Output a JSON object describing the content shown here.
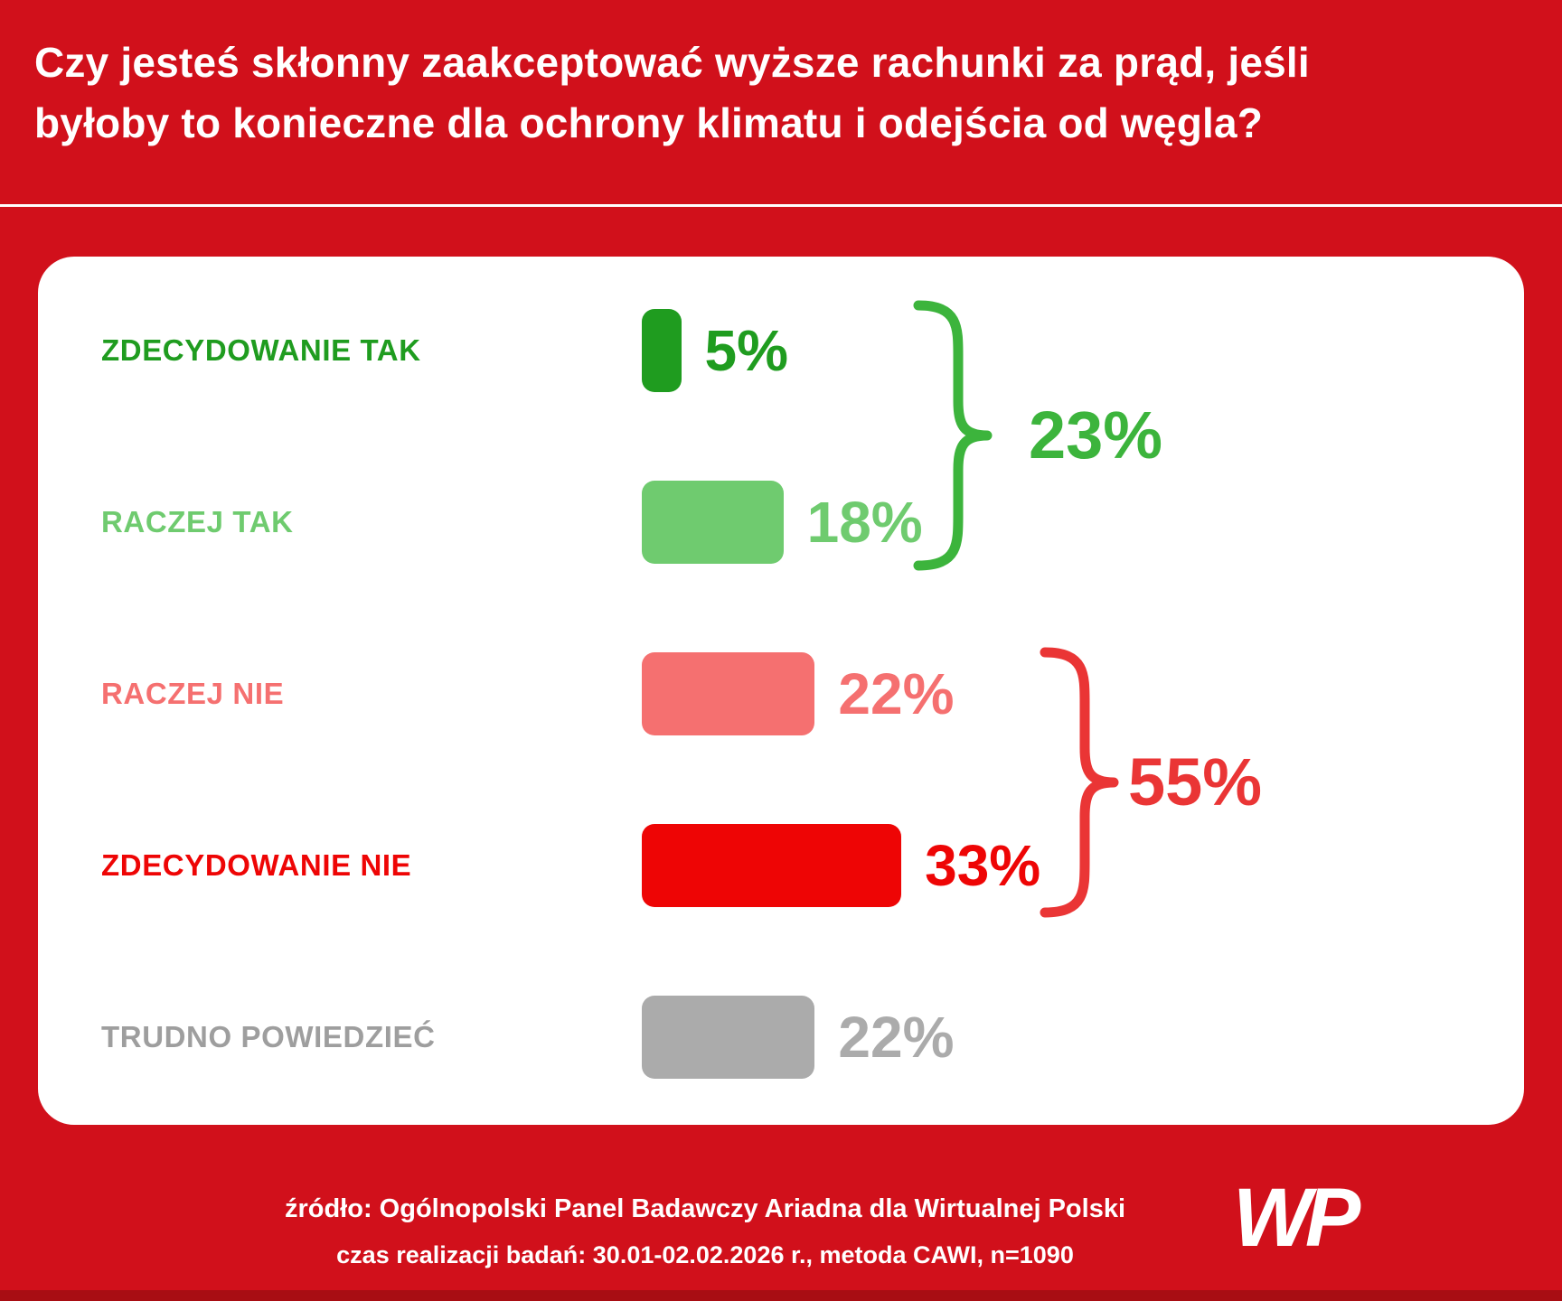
{
  "header": {
    "title": "Czy jesteś skłonny zaakceptować wyższe rachunki za prąd, jeśli\nbyłoby to konieczne dla ochrony klimatu i odejścia od węgla?"
  },
  "chart_data": {
    "type": "bar",
    "orientation": "horizontal",
    "title": "Czy jesteś skłonny zaakceptować wyższe rachunki za prąd, jeśli byłoby to konieczne dla ochrony klimatu i odejścia od węgla?",
    "unit": "%",
    "categories": [
      "ZDECYDOWANIE TAK",
      "RACZEJ TAK",
      "RACZEJ NIE",
      "ZDECYDOWANIE NIE",
      "TRUDNO POWIEDZIEĆ"
    ],
    "values": [
      5,
      18,
      22,
      33,
      22
    ],
    "value_labels": [
      "5%",
      "18%",
      "22%",
      "33%",
      "22%"
    ],
    "bar_colors": [
      "#1f9c1f",
      "#6fcb6f",
      "#f57070",
      "#ee0505",
      "#ababab"
    ],
    "label_colors": [
      "#1f9c1f",
      "#6fcb6f",
      "#f57070",
      "#ee0505",
      "#9e9e9e"
    ],
    "groups": [
      {
        "label": "23%",
        "total": 23,
        "members": [
          "ZDECYDOWANIE TAK",
          "RACZEJ TAK"
        ],
        "color": "#3cb43c"
      },
      {
        "label": "55%",
        "total": 55,
        "members": [
          "RACZEJ NIE",
          "ZDECYDOWANIE NIE"
        ],
        "color": "#ea3535"
      }
    ],
    "xlim": [
      0,
      100
    ],
    "grid": false,
    "legend": false
  },
  "footer": {
    "source_line": "źródło: Ogólnopolski Panel Badawczy Ariadna dla Wirtualnej Polski",
    "method_line": "czas realizacji badań: 30.01-02.02.2026 r., metoda CAWI, n=1090",
    "logo_text": "WP"
  },
  "theme": {
    "background": "#d1101b",
    "card_background": "#ffffff",
    "title_color": "#ffffff",
    "footer_text_color": "#ffffff",
    "bottom_edge_color": "#a80d13"
  }
}
